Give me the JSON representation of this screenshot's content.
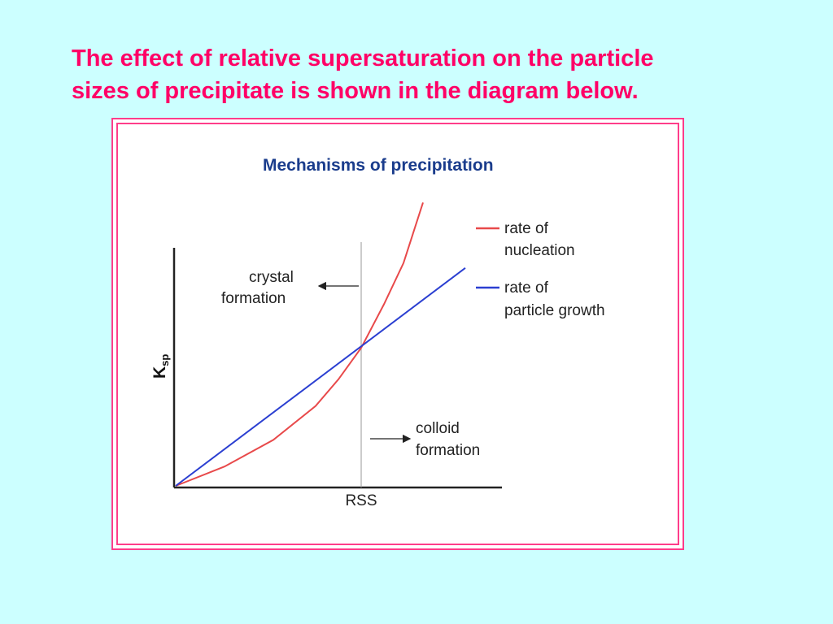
{
  "slide": {
    "title_line1": "The effect of relative supersaturation on the particle",
    "title_line2": "sizes of precipitate is shown in the diagram below."
  },
  "colors": {
    "background": "#ccffff",
    "title": "#ff0066",
    "frame": "#ff3d8a",
    "chart_title": "#1a3c8c",
    "nucleation": "#e8494a",
    "growth": "#2b3fd1"
  },
  "chart_data": {
    "type": "line",
    "title": "Mechanisms of precipitation",
    "xlabel": "",
    "ylabel_main": "K",
    "ylabel_sub": "sp",
    "x_marker_label": "RSS",
    "xlim": [
      0,
      10
    ],
    "ylim": [
      0,
      10
    ],
    "rss_x": 5.7,
    "legend_position": "top-right",
    "series": [
      {
        "name_line1": "rate of",
        "name_line2": "nucleation",
        "color": "#e8494a",
        "x": [
          0,
          1.5,
          3,
          4.3,
          5.0,
          5.7,
          6.4,
          7.0,
          7.6
        ],
        "y": [
          0,
          0.8,
          1.9,
          3.3,
          4.4,
          5.7,
          7.5,
          9.2,
          11.7
        ]
      },
      {
        "name_line1": "rate of",
        "name_line2": "particle growth",
        "color": "#2b3fd1",
        "x": [
          0,
          8.9
        ],
        "y": [
          0,
          9.0
        ]
      }
    ],
    "annotations": {
      "left_line1": "crystal",
      "left_line2": "formation",
      "right_line1": "colloid",
      "right_line2": "formation"
    }
  }
}
